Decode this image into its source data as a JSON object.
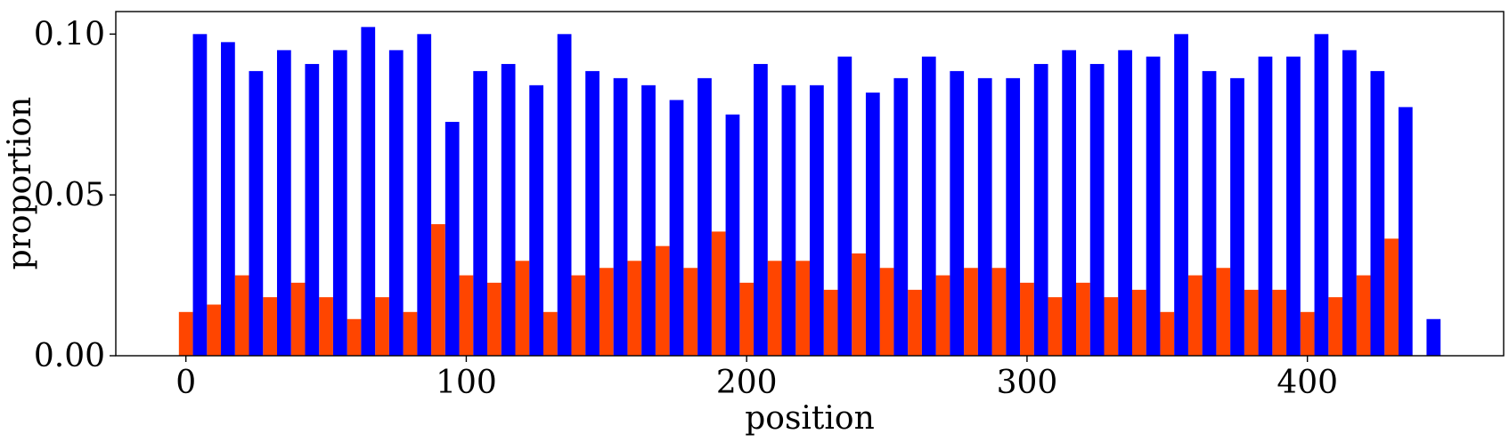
{
  "chart_data": {
    "type": "bar",
    "xlabel": "position",
    "ylabel": "proportion",
    "xlim": [
      -25,
      470
    ],
    "ylim": [
      0,
      0.107
    ],
    "xticks": [
      0,
      100,
      200,
      300,
      400
    ],
    "xtick_labels": [
      "0",
      "100",
      "200",
      "300",
      "400"
    ],
    "yticks": [
      0,
      0.05,
      0.1
    ],
    "ytick_labels": [
      "0.00",
      "0.05",
      "0.10"
    ],
    "grid": false,
    "legend": "none",
    "bin_width": 10,
    "series": [
      {
        "color": "#ff4500",
        "x": [
          0,
          10,
          20,
          30,
          40,
          50,
          60,
          70,
          80,
          90,
          100,
          110,
          120,
          130,
          140,
          150,
          160,
          170,
          180,
          190,
          200,
          210,
          220,
          230,
          240,
          250,
          260,
          270,
          280,
          290,
          300,
          310,
          320,
          330,
          340,
          350,
          360,
          370,
          380,
          390,
          400,
          410,
          420,
          430
        ],
        "values": [
          0.0136,
          0.0159,
          0.025,
          0.0182,
          0.0227,
          0.0182,
          0.0114,
          0.0182,
          0.0136,
          0.0409,
          0.025,
          0.0227,
          0.0295,
          0.0136,
          0.025,
          0.0273,
          0.0295,
          0.0341,
          0.0273,
          0.0386,
          0.0227,
          0.0295,
          0.0295,
          0.0205,
          0.0318,
          0.0273,
          0.0205,
          0.025,
          0.0273,
          0.0273,
          0.0227,
          0.0182,
          0.0227,
          0.0182,
          0.0205,
          0.0136,
          0.025,
          0.0273,
          0.0205,
          0.0205,
          0.0136,
          0.0182,
          0.025,
          0.0364
        ]
      },
      {
        "color": "#0000ff",
        "x": [
          5,
          15,
          25,
          35,
          45,
          55,
          65,
          75,
          85,
          95,
          105,
          115,
          125,
          135,
          145,
          155,
          165,
          175,
          185,
          195,
          205,
          215,
          225,
          235,
          245,
          255,
          265,
          275,
          285,
          295,
          305,
          315,
          325,
          335,
          345,
          355,
          365,
          375,
          385,
          395,
          405,
          415,
          425,
          435,
          445
        ],
        "values": [
          0.1,
          0.0975,
          0.0885,
          0.095,
          0.0907,
          0.095,
          0.1022,
          0.095,
          0.1,
          0.0727,
          0.0885,
          0.0907,
          0.0841,
          0.1,
          0.0885,
          0.0863,
          0.0841,
          0.0795,
          0.0863,
          0.075,
          0.0907,
          0.0841,
          0.0841,
          0.093,
          0.0818,
          0.0863,
          0.093,
          0.0885,
          0.0863,
          0.0863,
          0.0907,
          0.095,
          0.0907,
          0.095,
          0.093,
          0.1,
          0.0885,
          0.0863,
          0.093,
          0.093,
          0.1,
          0.095,
          0.0885,
          0.0773,
          0.0114
        ]
      }
    ]
  }
}
